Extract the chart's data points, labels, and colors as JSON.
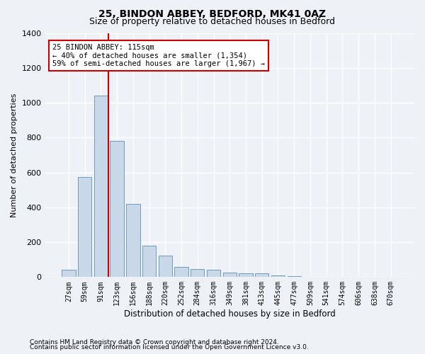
{
  "title_line1": "25, BINDON ABBEY, BEDFORD, MK41 0AZ",
  "title_line2": "Size of property relative to detached houses in Bedford",
  "xlabel": "Distribution of detached houses by size in Bedford",
  "ylabel": "Number of detached properties",
  "categories": [
    "27sqm",
    "59sqm",
    "91sqm",
    "123sqm",
    "156sqm",
    "188sqm",
    "220sqm",
    "252sqm",
    "284sqm",
    "316sqm",
    "349sqm",
    "381sqm",
    "413sqm",
    "445sqm",
    "477sqm",
    "509sqm",
    "541sqm",
    "574sqm",
    "606sqm",
    "638sqm",
    "670sqm"
  ],
  "values": [
    40,
    575,
    1040,
    780,
    420,
    180,
    125,
    60,
    45,
    40,
    25,
    20,
    20,
    10,
    5,
    3,
    2,
    1,
    0,
    0,
    0
  ],
  "bar_color": "#c8d8e8",
  "bar_edge_color": "#6090b0",
  "vline_color": "#cc0000",
  "vline_pos": 2.45,
  "annotation_text": "25 BINDON ABBEY: 115sqm\n← 40% of detached houses are smaller (1,354)\n59% of semi-detached houses are larger (1,967) →",
  "annotation_box_color": "#ffffff",
  "annotation_box_edge": "#cc0000",
  "ylim": [
    0,
    1400
  ],
  "yticks": [
    0,
    200,
    400,
    600,
    800,
    1000,
    1200,
    1400
  ],
  "background_color": "#eef2f7",
  "grid_color": "#ffffff",
  "footer_line1": "Contains HM Land Registry data © Crown copyright and database right 2024.",
  "footer_line2": "Contains public sector information licensed under the Open Government Licence v3.0.",
  "title_fontsize": 10,
  "subtitle_fontsize": 9,
  "bar_width": 0.85
}
